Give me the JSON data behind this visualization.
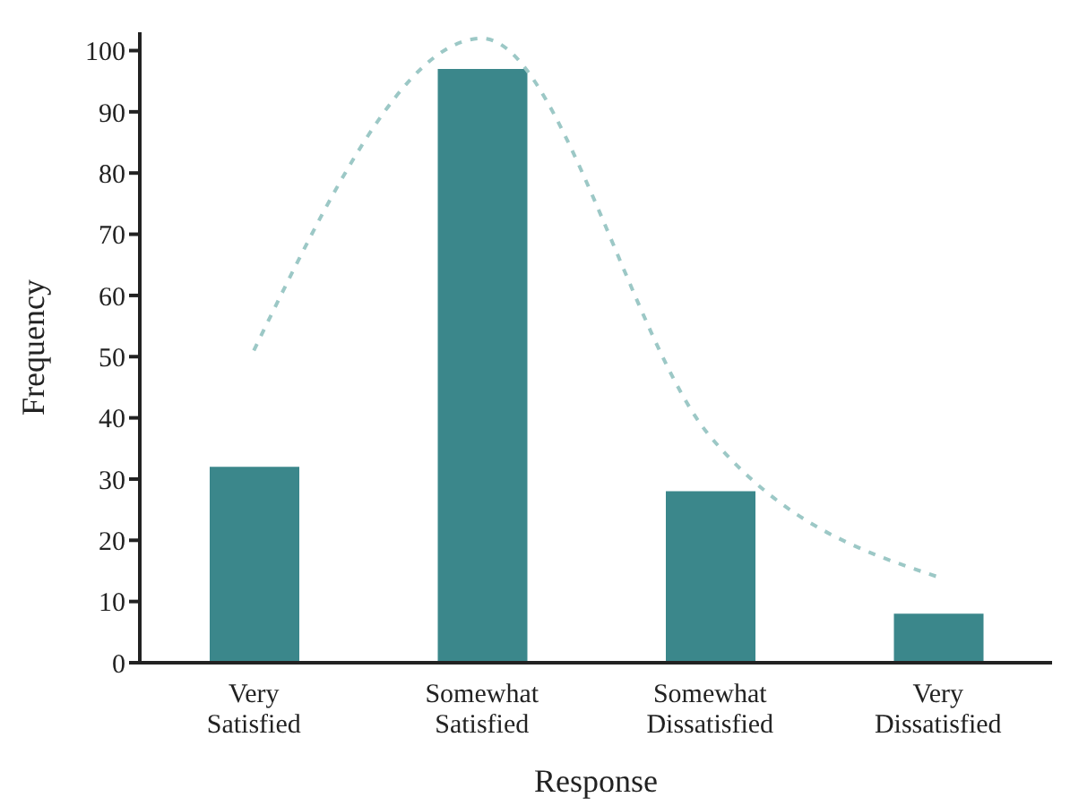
{
  "chart_data": {
    "type": "bar",
    "xlabel": "Response",
    "ylabel": "Frequency",
    "categories": [
      "Very Satisfied",
      "Somewhat Satisfied",
      "Somewhat Dissatisfied",
      "Very Dissatisfied"
    ],
    "series": [
      {
        "color": "#3b878b",
        "values": [
          32,
          97,
          28,
          8
        ]
      },
      {
        "type": "line",
        "color": "#9cc8c6",
        "line_style": "dashed",
        "values": [
          51,
          102,
          37,
          14
        ]
      }
    ],
    "ylim": [
      0,
      103
    ],
    "yticks": [
      0,
      10,
      20,
      30,
      40,
      50,
      60,
      70,
      80,
      90,
      100
    ],
    "marker": "none"
  }
}
